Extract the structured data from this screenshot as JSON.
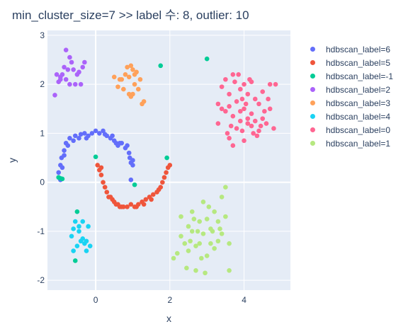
{
  "chart_data": {
    "type": "scatter",
    "title": "min_cluster_size=7 >> label 수: 8, outlier: 10",
    "xlabel": "x",
    "ylabel": "y",
    "xlim": [
      -1.3,
      5.25
    ],
    "ylim": [
      -2.2,
      3.1
    ],
    "xticks": [
      0,
      2,
      4
    ],
    "yticks": [
      -2,
      -1,
      0,
      1,
      2,
      3
    ],
    "grid": true,
    "legend_position": "right",
    "colors": {
      "plot_background": "#E5ECF6",
      "grid": "#ffffff",
      "text": "#2a3f5f"
    },
    "series": [
      {
        "name": "hdbscan_label=6",
        "color": "#636EFA",
        "points": [
          [
            -1.0,
            0.2
          ],
          [
            -0.95,
            0.35
          ],
          [
            -0.9,
            0.3
          ],
          [
            -0.92,
            0.5
          ],
          [
            -0.85,
            0.65
          ],
          [
            -0.8,
            0.8
          ],
          [
            -0.75,
            0.75
          ],
          [
            -0.7,
            0.9
          ],
          [
            -0.6,
            0.85
          ],
          [
            -0.55,
            0.95
          ],
          [
            -0.45,
            0.9
          ],
          [
            -0.4,
            0.98
          ],
          [
            -0.3,
            1.0
          ],
          [
            -0.2,
            0.95
          ],
          [
            -0.1,
            1.0
          ],
          [
            0.0,
            1.05
          ],
          [
            0.1,
            1.0
          ],
          [
            0.2,
            1.05
          ],
          [
            0.3,
            0.95
          ],
          [
            0.4,
            0.9
          ],
          [
            0.5,
            0.85
          ],
          [
            0.55,
            0.8
          ],
          [
            0.6,
            0.75
          ],
          [
            0.7,
            0.8
          ],
          [
            0.8,
            0.7
          ],
          [
            0.9,
            0.6
          ],
          [
            0.92,
            0.5
          ],
          [
            0.95,
            0.4
          ],
          [
            1.0,
            0.35
          ],
          [
            0.85,
            0.75
          ],
          [
            0.95,
            0.05
          ],
          [
            -0.95,
            0.05
          ],
          [
            0.25,
            0.98
          ],
          [
            -0.25,
            0.9
          ],
          [
            0.65,
            0.8
          ],
          [
            1.0,
            0.45
          ],
          [
            -0.85,
            0.55
          ],
          [
            0.45,
            0.95
          ]
        ]
      },
      {
        "name": "hdbscan_label=5",
        "color": "#EF553B",
        "points": [
          [
            0.05,
            0.35
          ],
          [
            0.1,
            0.25
          ],
          [
            0.15,
            0.15
          ],
          [
            0.2,
            0.0
          ],
          [
            0.25,
            -0.1
          ],
          [
            0.3,
            -0.2
          ],
          [
            0.35,
            -0.3
          ],
          [
            0.45,
            -0.35
          ],
          [
            0.5,
            -0.4
          ],
          [
            0.55,
            -0.45
          ],
          [
            0.6,
            -0.45
          ],
          [
            0.7,
            -0.5
          ],
          [
            0.75,
            -0.5
          ],
          [
            0.85,
            -0.5
          ],
          [
            0.95,
            -0.45
          ],
          [
            1.05,
            -0.5
          ],
          [
            1.15,
            -0.45
          ],
          [
            1.25,
            -0.4
          ],
          [
            1.35,
            -0.35
          ],
          [
            1.45,
            -0.3
          ],
          [
            1.55,
            -0.25
          ],
          [
            1.65,
            -0.2
          ],
          [
            1.75,
            -0.1
          ],
          [
            1.8,
            0.0
          ],
          [
            1.85,
            0.1
          ],
          [
            1.9,
            0.2
          ],
          [
            1.95,
            0.3
          ],
          [
            2.0,
            0.35
          ],
          [
            0.15,
            0.3
          ],
          [
            0.4,
            -0.3
          ],
          [
            1.3,
            -0.45
          ],
          [
            1.7,
            -0.15
          ],
          [
            0.65,
            -0.5
          ],
          [
            1.1,
            -0.5
          ],
          [
            1.5,
            -0.35
          ]
        ]
      },
      {
        "name": "hdbscan_label=-1",
        "color": "#00CC96",
        "points": [
          [
            1.75,
            2.38
          ],
          [
            3.0,
            2.52
          ],
          [
            1.92,
            0.5
          ],
          [
            -0.5,
            -0.6
          ],
          [
            -0.55,
            -1.6
          ],
          [
            -1.0,
            0.1
          ],
          [
            -0.95,
            0.08
          ],
          [
            1.05,
            -0.05
          ],
          [
            0.0,
            0.52
          ],
          [
            -0.9,
            0.07
          ]
        ]
      },
      {
        "name": "hdbscan_label=2",
        "color": "#AB63FA",
        "points": [
          [
            -0.8,
            2.7
          ],
          [
            -1.1,
            1.78
          ],
          [
            -1.0,
            2.05
          ],
          [
            -0.95,
            2.15
          ],
          [
            -0.9,
            2.2
          ],
          [
            -0.85,
            2.35
          ],
          [
            -0.8,
            2.1
          ],
          [
            -0.7,
            2.0
          ],
          [
            -0.7,
            2.55
          ],
          [
            -0.6,
            2.3
          ],
          [
            -0.5,
            2.2
          ],
          [
            -0.4,
            2.0
          ],
          [
            -0.35,
            2.35
          ],
          [
            -0.3,
            2.45
          ],
          [
            -0.45,
            2.25
          ],
          [
            -0.55,
            2.0
          ],
          [
            -0.65,
            2.45
          ],
          [
            -0.75,
            2.3
          ],
          [
            -0.95,
            2.1
          ],
          [
            -1.05,
            2.2
          ]
        ]
      },
      {
        "name": "hdbscan_label=3",
        "color": "#FFA15A",
        "points": [
          [
            0.5,
            2.15
          ],
          [
            0.6,
            1.95
          ],
          [
            0.65,
            2.1
          ],
          [
            0.75,
            1.9
          ],
          [
            0.8,
            2.2
          ],
          [
            0.85,
            2.35
          ],
          [
            0.9,
            1.8
          ],
          [
            0.95,
            1.75
          ],
          [
            1.0,
            2.3
          ],
          [
            1.05,
            2.0
          ],
          [
            1.1,
            2.25
          ],
          [
            1.15,
            1.9
          ],
          [
            1.2,
            2.1
          ],
          [
            1.25,
            1.6
          ],
          [
            1.3,
            1.65
          ],
          [
            0.9,
            2.15
          ],
          [
            1.0,
            1.8
          ],
          [
            0.7,
            2.1
          ],
          [
            0.95,
            2.38
          ],
          [
            1.05,
            2.2
          ]
        ]
      },
      {
        "name": "hdbscan_label=4",
        "color": "#19D3F3",
        "points": [
          [
            -0.65,
            -1.1
          ],
          [
            -0.6,
            -0.95
          ],
          [
            -0.55,
            -0.8
          ],
          [
            -0.5,
            -1.3
          ],
          [
            -0.45,
            -0.9
          ],
          [
            -0.4,
            -1.2
          ],
          [
            -0.35,
            -1.15
          ],
          [
            -0.3,
            -1.25
          ],
          [
            -0.25,
            -1.2
          ],
          [
            -0.2,
            -0.9
          ],
          [
            -0.15,
            -1.3
          ],
          [
            -0.35,
            -0.8
          ],
          [
            -0.45,
            -1.0
          ],
          [
            -0.6,
            -1.4
          ],
          [
            -0.25,
            -1.4
          ]
        ]
      },
      {
        "name": "hdbscan_label=0",
        "color": "#FF6692",
        "points": [
          [
            3.3,
            1.6
          ],
          [
            3.4,
            1.95
          ],
          [
            3.5,
            1.45
          ],
          [
            3.5,
            2.1
          ],
          [
            3.6,
            1.8
          ],
          [
            3.7,
            1.35
          ],
          [
            3.7,
            2.2
          ],
          [
            3.8,
            1.65
          ],
          [
            3.8,
            1.1
          ],
          [
            3.9,
            1.9
          ],
          [
            3.9,
            1.25
          ],
          [
            4.0,
            2.0
          ],
          [
            4.0,
            1.5
          ],
          [
            4.1,
            1.2
          ],
          [
            4.1,
            1.8
          ],
          [
            4.2,
            1.4
          ],
          [
            4.2,
            2.05
          ],
          [
            4.3,
            1.25
          ],
          [
            4.3,
            1.7
          ],
          [
            4.4,
            1.6
          ],
          [
            4.4,
            1.05
          ],
          [
            4.5,
            1.3
          ],
          [
            4.5,
            1.85
          ],
          [
            4.6,
            1.2
          ],
          [
            4.7,
            2.0
          ],
          [
            4.7,
            1.5
          ],
          [
            4.8,
            1.1
          ],
          [
            3.6,
            0.9
          ],
          [
            3.7,
            0.75
          ],
          [
            4.0,
            0.85
          ],
          [
            3.9,
            1.45
          ],
          [
            4.1,
            1.3
          ],
          [
            4.2,
            1.15
          ],
          [
            3.4,
            1.5
          ],
          [
            3.3,
            1.2
          ],
          [
            3.6,
            1.55
          ],
          [
            4.25,
            1.0
          ],
          [
            4.35,
            0.95
          ],
          [
            4.05,
            1.6
          ],
          [
            3.95,
            1.7
          ],
          [
            4.55,
            1.45
          ],
          [
            4.65,
            1.7
          ],
          [
            4.85,
            2.0
          ],
          [
            3.75,
            2.05
          ],
          [
            3.85,
            2.2
          ],
          [
            4.15,
            2.1
          ],
          [
            3.55,
            1.0
          ],
          [
            3.65,
            1.15
          ],
          [
            3.95,
            1.05
          ],
          [
            4.45,
            1.15
          ]
        ]
      },
      {
        "name": "hdbscan_label=1",
        "color": "#B6E880",
        "points": [
          [
            2.1,
            -1.55
          ],
          [
            2.2,
            -1.45
          ],
          [
            2.3,
            -0.7
          ],
          [
            2.3,
            -1.1
          ],
          [
            2.4,
            -1.25
          ],
          [
            2.45,
            -1.75
          ],
          [
            2.5,
            -0.9
          ],
          [
            2.5,
            -1.4
          ],
          [
            2.6,
            -0.6
          ],
          [
            2.6,
            -1.0
          ],
          [
            2.7,
            -1.3
          ],
          [
            2.7,
            -1.8
          ],
          [
            2.8,
            -0.8
          ],
          [
            2.8,
            -1.25
          ],
          [
            2.9,
            -1.05
          ],
          [
            2.9,
            -0.4
          ],
          [
            3.0,
            -1.5
          ],
          [
            3.0,
            -0.75
          ],
          [
            3.1,
            -0.95
          ],
          [
            3.1,
            -1.25
          ],
          [
            3.2,
            -0.6
          ],
          [
            3.2,
            -1.35
          ],
          [
            3.3,
            -0.8
          ],
          [
            3.3,
            -1.2
          ],
          [
            3.4,
            -0.3
          ],
          [
            3.4,
            -1.05
          ],
          [
            3.5,
            -0.1
          ],
          [
            3.5,
            -0.7
          ],
          [
            3.6,
            -1.25
          ],
          [
            3.6,
            -1.8
          ],
          [
            2.85,
            -1.55
          ],
          [
            2.95,
            -1.85
          ],
          [
            3.05,
            -0.5
          ],
          [
            2.55,
            -1.2
          ],
          [
            2.75,
            -1.0
          ],
          [
            3.15,
            -1.0
          ],
          [
            3.35,
            -0.95
          ],
          [
            2.65,
            -0.75
          ]
        ]
      }
    ]
  }
}
